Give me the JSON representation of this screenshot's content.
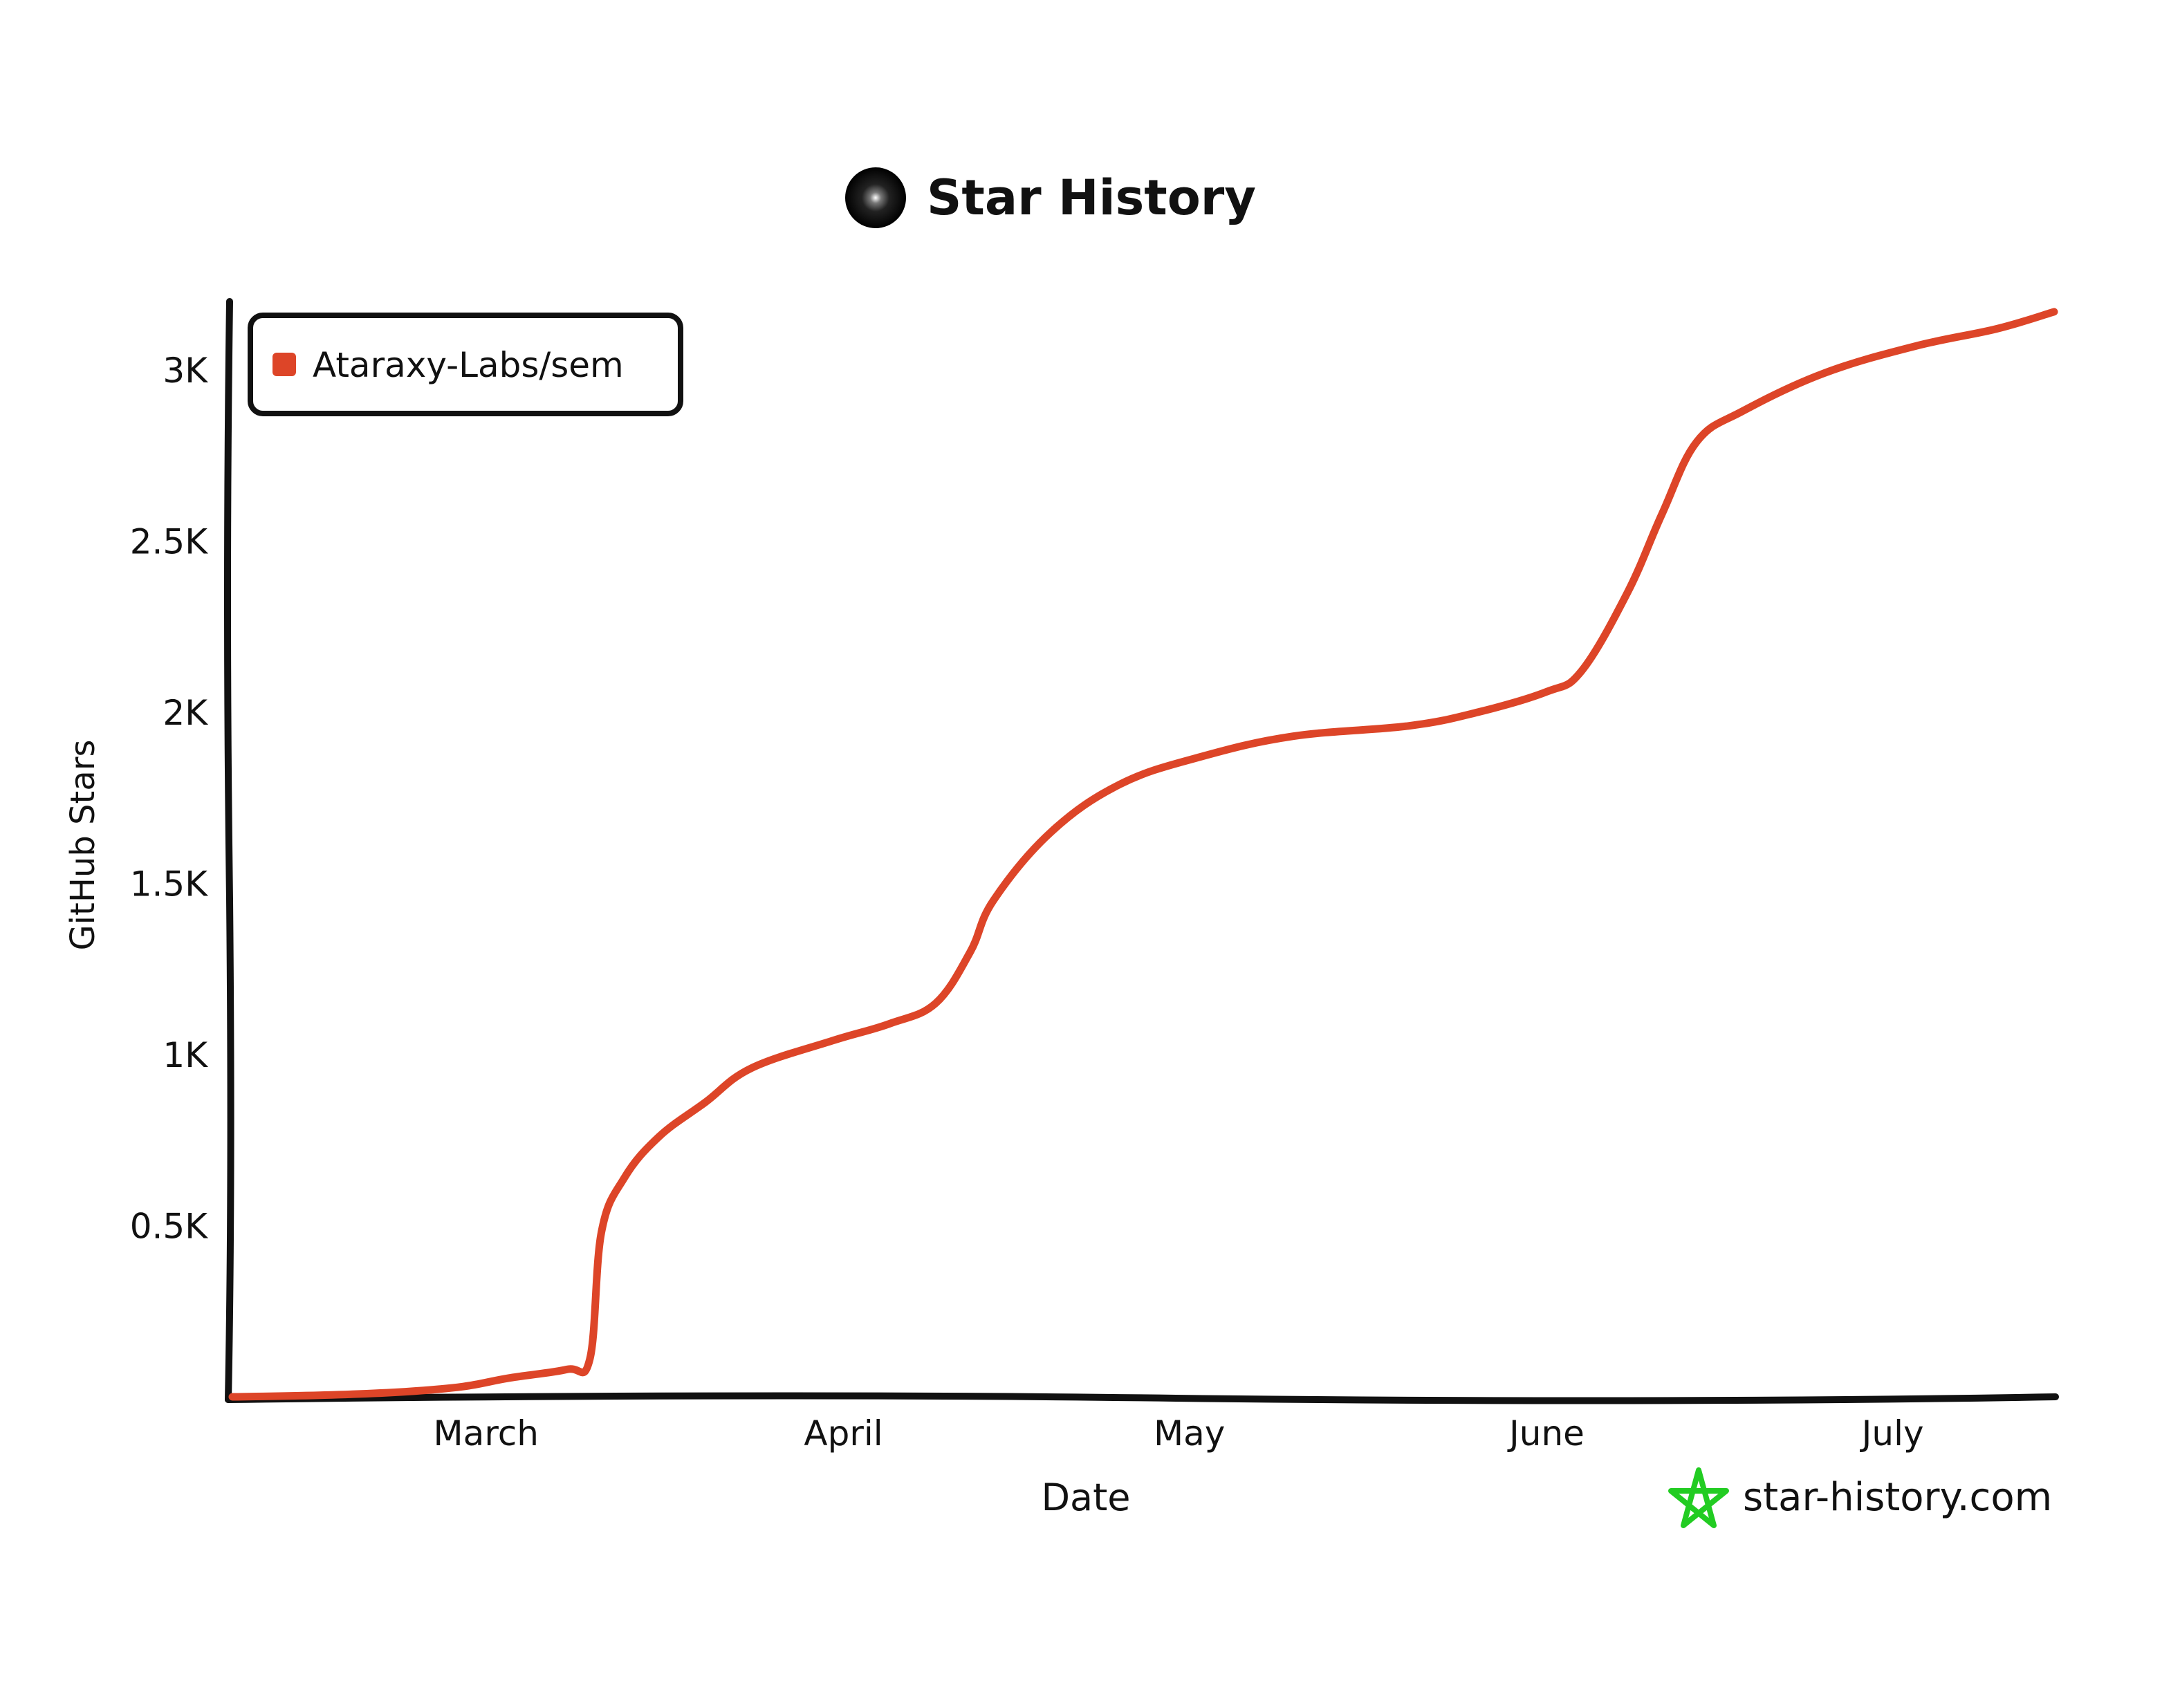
{
  "chart_data": {
    "type": "line",
    "title": "Star History",
    "xlabel": "Date",
    "ylabel": "GitHub Stars",
    "x_ticks": [
      "March",
      "April",
      "May",
      "June",
      "July"
    ],
    "y_ticks": [
      "0.5K",
      "1K",
      "1.5K",
      "2K",
      "2.5K",
      "3K"
    ],
    "y_tick_values": [
      500,
      1000,
      1500,
      2000,
      2500,
      3000
    ],
    "ylim": [
      0,
      3200
    ],
    "grid": false,
    "legend_position": "top-left",
    "series": [
      {
        "name": "Ataraxy-Labs/sem",
        "color": "#dd4528",
        "points": [
          {
            "date": "2025-02-07",
            "stars": 0
          },
          {
            "date": "2025-02-15",
            "stars": 5
          },
          {
            "date": "2025-02-22",
            "stars": 15
          },
          {
            "date": "2025-02-27",
            "stars": 30
          },
          {
            "date": "2025-03-03",
            "stars": 55
          },
          {
            "date": "2025-03-08",
            "stars": 80
          },
          {
            "date": "2025-03-10",
            "stars": 110
          },
          {
            "date": "2025-03-11",
            "stars": 480
          },
          {
            "date": "2025-03-13",
            "stars": 640
          },
          {
            "date": "2025-03-16",
            "stars": 760
          },
          {
            "date": "2025-03-20",
            "stars": 860
          },
          {
            "date": "2025-03-24",
            "stars": 960
          },
          {
            "date": "2025-03-31",
            "stars": 1040
          },
          {
            "date": "2025-04-05",
            "stars": 1090
          },
          {
            "date": "2025-04-09",
            "stars": 1150
          },
          {
            "date": "2025-04-12",
            "stars": 1300
          },
          {
            "date": "2025-04-14",
            "stars": 1450
          },
          {
            "date": "2025-04-19",
            "stars": 1650
          },
          {
            "date": "2025-04-25",
            "stars": 1790
          },
          {
            "date": "2025-05-02",
            "stars": 1870
          },
          {
            "date": "2025-05-10",
            "stars": 1930
          },
          {
            "date": "2025-05-20",
            "stars": 1960
          },
          {
            "date": "2025-05-26",
            "stars": 2000
          },
          {
            "date": "2025-06-01",
            "stars": 2060
          },
          {
            "date": "2025-06-04",
            "stars": 2120
          },
          {
            "date": "2025-06-08",
            "stars": 2350
          },
          {
            "date": "2025-06-11",
            "stars": 2580
          },
          {
            "date": "2025-06-14",
            "stars": 2790
          },
          {
            "date": "2025-06-18",
            "stars": 2880
          },
          {
            "date": "2025-06-25",
            "stars": 2990
          },
          {
            "date": "2025-07-03",
            "stars": 3070
          },
          {
            "date": "2025-07-10",
            "stars": 3120
          },
          {
            "date": "2025-07-15",
            "stars": 3170
          }
        ]
      }
    ]
  },
  "header": {
    "logo_icon": "dark-orb-icon",
    "title": "Star History"
  },
  "watermark": {
    "icon": "star-outline-icon",
    "icon_color": "#22cc22",
    "text": "star-history.com"
  }
}
